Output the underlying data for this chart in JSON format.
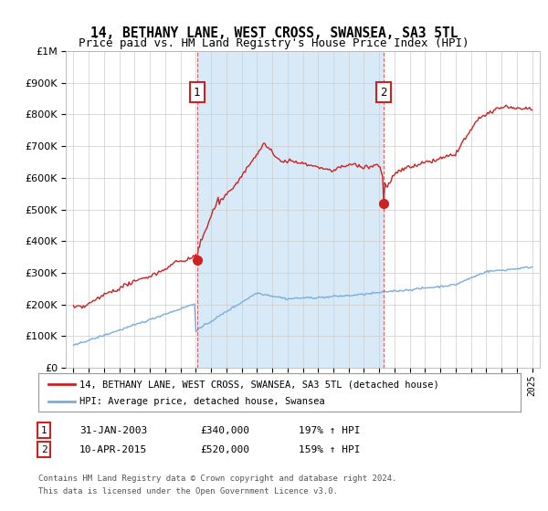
{
  "title": "14, BETHANY LANE, WEST CROSS, SWANSEA, SA3 5TL",
  "subtitle": "Price paid vs. HM Land Registry's House Price Index (HPI)",
  "sale1_date": 2003.08,
  "sale1_price": 340000,
  "sale1_label": "1",
  "sale2_date": 2015.27,
  "sale2_price": 520000,
  "sale2_label": "2",
  "legend_property": "14, BETHANY LANE, WEST CROSS, SWANSEA, SA3 5TL (detached house)",
  "legend_hpi": "HPI: Average price, detached house, Swansea",
  "footer1": "Contains HM Land Registry data © Crown copyright and database right 2024.",
  "footer2": "This data is licensed under the Open Government Licence v3.0.",
  "hpi_color": "#7aaddc",
  "property_color": "#cc2222",
  "vline_color": "#cc4444",
  "shade_color": "#d8eaf7",
  "background_color": "#ffffff",
  "ylim_min": 0,
  "ylim_max": 1000000,
  "xlim_min": 1994.5,
  "xlim_max": 2025.5,
  "ann1_date_str": "31-JAN-2003",
  "ann1_price_str": "£340,000",
  "ann1_hpi_str": "197% ↑ HPI",
  "ann2_date_str": "10-APR-2015",
  "ann2_price_str": "£520,000",
  "ann2_hpi_str": "159% ↑ HPI"
}
